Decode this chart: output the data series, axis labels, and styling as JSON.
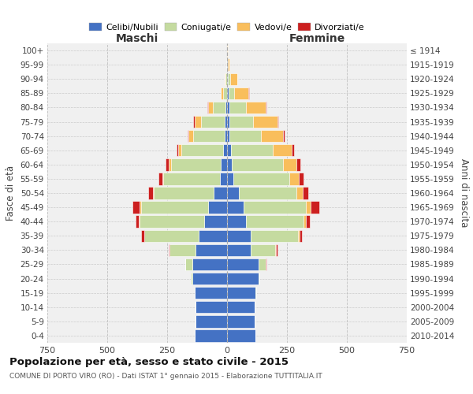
{
  "age_groups": [
    "0-4",
    "5-9",
    "10-14",
    "15-19",
    "20-24",
    "25-29",
    "30-34",
    "35-39",
    "40-44",
    "45-49",
    "50-54",
    "55-59",
    "60-64",
    "65-69",
    "70-74",
    "75-79",
    "80-84",
    "85-89",
    "90-94",
    "95-99",
    "100+"
  ],
  "birth_years": [
    "2010-2014",
    "2005-2009",
    "2000-2004",
    "1995-1999",
    "1990-1994",
    "1985-1989",
    "1980-1984",
    "1975-1979",
    "1970-1974",
    "1965-1969",
    "1960-1964",
    "1955-1959",
    "1950-1954",
    "1945-1949",
    "1940-1944",
    "1935-1939",
    "1930-1934",
    "1925-1929",
    "1920-1924",
    "1915-1919",
    "≤ 1914"
  ],
  "maschi": {
    "celibi": [
      135,
      130,
      130,
      135,
      145,
      145,
      130,
      120,
      95,
      80,
      55,
      30,
      25,
      15,
      10,
      10,
      5,
      0,
      0,
      0,
      0
    ],
    "coniugati": [
      0,
      0,
      0,
      1,
      5,
      30,
      110,
      225,
      270,
      280,
      250,
      235,
      210,
      175,
      130,
      100,
      55,
      15,
      5,
      2,
      0
    ],
    "vedovi": [
      0,
      0,
      0,
      0,
      0,
      0,
      0,
      2,
      2,
      5,
      5,
      5,
      10,
      15,
      20,
      25,
      20,
      10,
      5,
      0,
      0
    ],
    "divorziati": [
      0,
      0,
      0,
      0,
      0,
      0,
      5,
      10,
      15,
      30,
      20,
      15,
      10,
      5,
      5,
      5,
      2,
      0,
      0,
      0,
      0
    ]
  },
  "femmine": {
    "celibi": [
      120,
      115,
      115,
      120,
      130,
      130,
      100,
      100,
      80,
      70,
      50,
      25,
      20,
      15,
      10,
      10,
      10,
      5,
      2,
      2,
      0
    ],
    "coniugati": [
      0,
      0,
      0,
      2,
      5,
      30,
      100,
      195,
      240,
      260,
      240,
      235,
      215,
      175,
      130,
      100,
      70,
      25,
      10,
      2,
      0
    ],
    "vedovi": [
      0,
      0,
      0,
      0,
      0,
      2,
      5,
      8,
      10,
      20,
      25,
      40,
      55,
      80,
      95,
      100,
      80,
      60,
      30,
      5,
      2
    ],
    "divorziati": [
      0,
      0,
      0,
      0,
      0,
      2,
      5,
      10,
      15,
      35,
      25,
      20,
      15,
      10,
      5,
      5,
      5,
      2,
      0,
      0,
      0
    ]
  },
  "colors": {
    "celibi": "#4472c4",
    "coniugati": "#c5dba0",
    "vedovi": "#f9be5c",
    "divorziati": "#cc1f1f"
  },
  "title": "Popolazione per età, sesso e stato civile - 2015",
  "subtitle": "COMUNE DI PORTO VIRO (RO) - Dati ISTAT 1° gennaio 2015 - Elaborazione TUTTITALIA.IT",
  "xlabel_left": "Maschi",
  "xlabel_right": "Femmine",
  "ylabel_left": "Fasce di età",
  "ylabel_right": "Anni di nascita",
  "xlim": 750,
  "bg_color": "#ffffff",
  "plot_bg": "#f0f0f0",
  "grid_color": "#bbbbbb"
}
